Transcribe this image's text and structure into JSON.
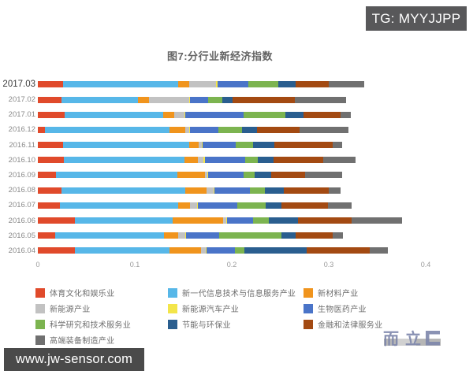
{
  "banner_top_right": {
    "text": "TG: MYYJJPP",
    "bg": "#58585a",
    "fg": "#ffffff"
  },
  "banner_bottom_left": {
    "text": "www.jw-sensor.com",
    "bg": "#4a4a4a",
    "fg": "#ffffff"
  },
  "watermark": {
    "text": "而立"
  },
  "chart_data": {
    "type": "bar",
    "orientation": "horizontal",
    "stacked": true,
    "title": "图7:分行业新经济指数",
    "xlabel": "",
    "ylabel": "",
    "xlim": [
      0,
      0.4
    ],
    "x_ticks": [
      0,
      0.1,
      0.2,
      0.3,
      0.4
    ],
    "grid": false,
    "legend_position": "bottom",
    "categories": [
      "2017.03",
      "2017.02",
      "2017.01",
      "2016.12",
      "2016.11",
      "2016.10",
      "2016.09",
      "2016.08",
      "2016.07",
      "2016.06",
      "2016.05",
      "2016.04"
    ],
    "series": [
      {
        "name": "体育文化和娱乐业",
        "color": "#e04a2b",
        "values": [
          0.026,
          0.024,
          0.028,
          0.007,
          0.026,
          0.027,
          0.019,
          0.024,
          0.023,
          0.038,
          0.018,
          0.038
        ]
      },
      {
        "name": "新一代信息技术与信息服务产业",
        "color": "#57b7e8",
        "values": [
          0.119,
          0.079,
          0.101,
          0.129,
          0.13,
          0.124,
          0.125,
          0.128,
          0.122,
          0.101,
          0.112,
          0.098
        ]
      },
      {
        "name": "新材料产业",
        "color": "#f0941d",
        "values": [
          0.011,
          0.012,
          0.012,
          0.016,
          0.01,
          0.014,
          0.028,
          0.022,
          0.012,
          0.052,
          0.015,
          0.032
        ]
      },
      {
        "name": "新能源产业",
        "color": "#c2c2c2",
        "values": [
          0.028,
          0.041,
          0.01,
          0.004,
          0.003,
          0.006,
          0.003,
          0.007,
          0.007,
          0.003,
          0.007,
          0.005
        ]
      },
      {
        "name": "新能源汽车产业",
        "color": "#f3e54a",
        "values": [
          0.001,
          0.001,
          0.001,
          0.001,
          0.001,
          0.001,
          0.001,
          0.001,
          0.001,
          0.001,
          0.001,
          0.001
        ]
      },
      {
        "name": "生物医药产业",
        "color": "#4a74c8",
        "values": [
          0.032,
          0.019,
          0.06,
          0.029,
          0.034,
          0.042,
          0.036,
          0.037,
          0.041,
          0.027,
          0.034,
          0.029
        ]
      },
      {
        "name": "科学研究和技术服务业",
        "color": "#7cb450",
        "values": [
          0.031,
          0.014,
          0.043,
          0.025,
          0.018,
          0.013,
          0.012,
          0.015,
          0.029,
          0.016,
          0.064,
          0.01
        ]
      },
      {
        "name": "节能与环保业",
        "color": "#2a5e8f",
        "values": [
          0.018,
          0.011,
          0.019,
          0.015,
          0.022,
          0.016,
          0.017,
          0.02,
          0.016,
          0.03,
          0.015,
          0.064
        ]
      },
      {
        "name": "金融和法律服务业",
        "color": "#a34a12",
        "values": [
          0.034,
          0.064,
          0.038,
          0.044,
          0.06,
          0.051,
          0.035,
          0.046,
          0.048,
          0.056,
          0.038,
          0.065
        ]
      },
      {
        "name": "高端装备制造产业",
        "color": "#707070",
        "values": [
          0.037,
          0.053,
          0.011,
          0.05,
          0.01,
          0.034,
          0.038,
          0.012,
          0.025,
          0.052,
          0.011,
          0.019
        ]
      }
    ]
  }
}
